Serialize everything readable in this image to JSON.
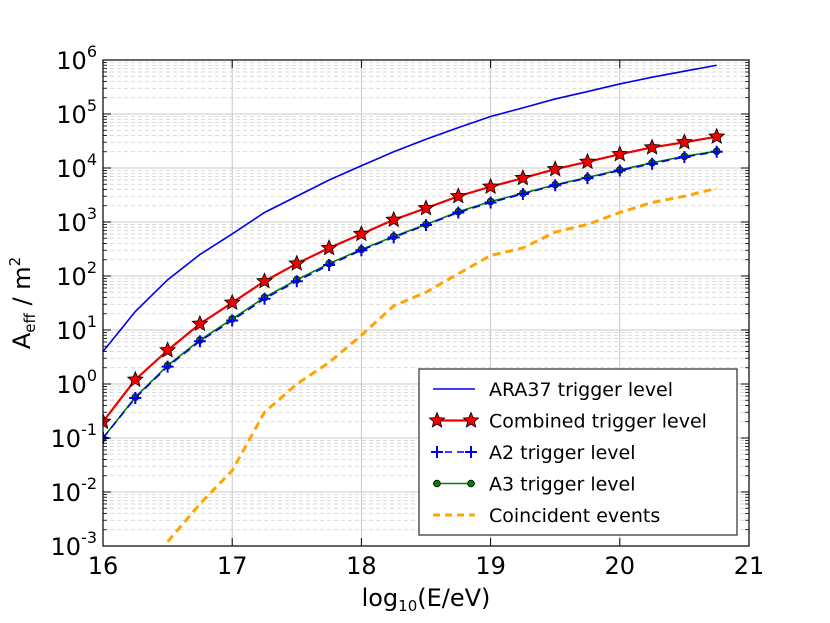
{
  "chart_data": {
    "type": "line",
    "title": "",
    "xlabel": {
      "base": "log",
      "sub": "10",
      "rest": "(E/eV)"
    },
    "ylabel": {
      "base": "A",
      "sub": "eff",
      "mid": " / m",
      "sup": "2"
    },
    "xlim": [
      16,
      21
    ],
    "ylim_log10": [
      -3,
      6
    ],
    "x_ticks": [
      "16",
      "17",
      "18",
      "19",
      "20",
      "21"
    ],
    "y_ticks": [
      {
        "base": "10",
        "exp": "-3"
      },
      {
        "base": "10",
        "exp": "-2"
      },
      {
        "base": "10",
        "exp": "-1"
      },
      {
        "base": "10",
        "exp": "0"
      },
      {
        "base": "10",
        "exp": "1"
      },
      {
        "base": "10",
        "exp": "2"
      },
      {
        "base": "10",
        "exp": "3"
      },
      {
        "base": "10",
        "exp": "4"
      },
      {
        "base": "10",
        "exp": "5"
      },
      {
        "base": "10",
        "exp": "6"
      }
    ],
    "grid": true,
    "legend_position": "bottom-right",
    "series": [
      {
        "name": "ARA37 trigger level",
        "color": "#0000ee",
        "style": "solid",
        "marker": "none",
        "x": [
          16.0,
          16.25,
          16.5,
          16.75,
          17.0,
          17.25,
          17.5,
          17.75,
          18.0,
          18.25,
          18.5,
          18.75,
          19.0,
          19.25,
          19.5,
          19.75,
          20.0,
          20.25,
          20.5,
          20.75
        ],
        "y": [
          4,
          22,
          85,
          250,
          600,
          1500,
          3000,
          6000,
          11000,
          20000,
          34000,
          56000,
          90000,
          130000,
          190000,
          260000,
          360000,
          480000,
          620000,
          800000
        ]
      },
      {
        "name": "Combined trigger level",
        "color": "#ee0000",
        "style": "solid",
        "marker": "star",
        "x": [
          16.0,
          16.25,
          16.5,
          16.75,
          17.0,
          17.25,
          17.5,
          17.75,
          18.0,
          18.25,
          18.5,
          18.75,
          19.0,
          19.25,
          19.5,
          19.75,
          20.0,
          20.25,
          20.5,
          20.75
        ],
        "y": [
          0.2,
          1.2,
          4.2,
          13,
          32,
          80,
          170,
          330,
          600,
          1100,
          1800,
          3000,
          4500,
          6500,
          9500,
          13000,
          18000,
          24000,
          30000,
          38000
        ]
      },
      {
        "name": "A2 trigger level",
        "color": "#0000ee",
        "style": "dashed",
        "marker": "plus",
        "x": [
          16.0,
          16.25,
          16.5,
          16.75,
          17.0,
          17.25,
          17.5,
          17.75,
          18.0,
          18.25,
          18.5,
          18.75,
          19.0,
          19.25,
          19.5,
          19.75,
          20.0,
          20.25,
          20.5,
          20.75
        ],
        "y": [
          0.1,
          0.55,
          2.1,
          6.2,
          15,
          38,
          80,
          160,
          300,
          520,
          880,
          1500,
          2300,
          3300,
          4800,
          6500,
          9000,
          12000,
          16000,
          20000
        ]
      },
      {
        "name": "A3 trigger level",
        "color": "#008000",
        "style": "solid",
        "marker": "circle",
        "x": [
          16.0,
          16.25,
          16.5,
          16.75,
          17.0,
          17.25,
          17.5,
          17.75,
          18.0,
          18.25,
          18.5,
          18.75,
          19.0,
          19.25,
          19.5,
          19.75,
          20.0,
          20.25,
          20.5,
          20.75
        ],
        "y": [
          0.1,
          0.57,
          2.2,
          6.5,
          16,
          40,
          85,
          170,
          310,
          540,
          900,
          1550,
          2400,
          3400,
          4900,
          6700,
          9200,
          12500,
          16500,
          20500
        ]
      },
      {
        "name": "Coincident events",
        "color": "#ffa500",
        "style": "dashed",
        "marker": "none",
        "x": [
          16.5,
          16.75,
          17.0,
          17.25,
          17.5,
          17.75,
          18.0,
          18.25,
          18.5,
          18.75,
          19.0,
          19.25,
          19.5,
          19.75,
          20.0,
          20.25,
          20.5,
          20.75
        ],
        "y": [
          0.0012,
          0.006,
          0.025,
          0.3,
          1.0,
          2.5,
          8,
          28,
          50,
          110,
          240,
          330,
          650,
          900,
          1500,
          2300,
          3000,
          4200
        ]
      }
    ]
  }
}
